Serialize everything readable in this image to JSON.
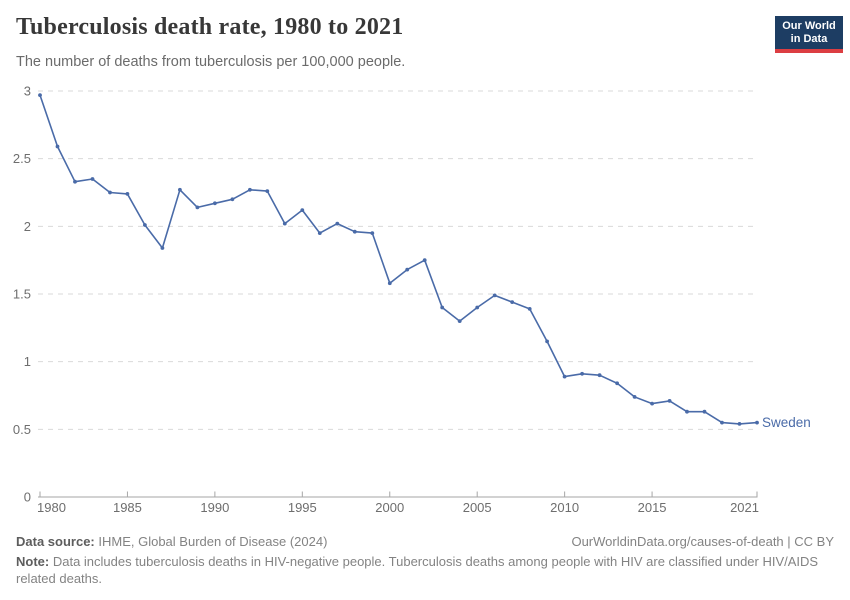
{
  "header": {
    "title": "Tuberculosis death rate, 1980 to 2021",
    "subtitle": "The number of deaths from tuberculosis per 100,000 people.",
    "logo_line1": "Our World",
    "logo_line2": "in Data"
  },
  "chart_data": {
    "type": "line",
    "title": "Tuberculosis death rate, 1980 to 2021",
    "xlabel": "",
    "ylabel": "Deaths from tuberculosis per 100,000 people",
    "xlim": [
      1980,
      2021
    ],
    "ylim": [
      0,
      3
    ],
    "yticks": [
      0,
      0.5,
      1,
      1.5,
      2,
      2.5,
      3
    ],
    "xticks": [
      1980,
      1985,
      1990,
      1995,
      2000,
      2005,
      2010,
      2015,
      2021
    ],
    "grid": "horizontal-dashed",
    "legend": "end-of-line-label",
    "colors": {
      "grid": "#d9d9d9",
      "axis": "#a6a6a6",
      "tick_text": "#6e6e6e"
    },
    "series": [
      {
        "name": "Sweden",
        "color": "#4a6ba8",
        "x": [
          1980,
          1981,
          1982,
          1983,
          1984,
          1985,
          1986,
          1987,
          1988,
          1989,
          1990,
          1991,
          1992,
          1993,
          1994,
          1995,
          1996,
          1997,
          1998,
          1999,
          2000,
          2001,
          2002,
          2003,
          2004,
          2005,
          2006,
          2007,
          2008,
          2009,
          2010,
          2011,
          2012,
          2013,
          2014,
          2015,
          2016,
          2017,
          2018,
          2019,
          2020,
          2021
        ],
        "values": [
          2.97,
          2.59,
          2.33,
          2.35,
          2.25,
          2.24,
          2.01,
          1.84,
          2.27,
          2.14,
          2.17,
          2.2,
          2.27,
          2.26,
          2.02,
          2.12,
          1.95,
          2.02,
          1.96,
          1.95,
          1.58,
          1.68,
          1.75,
          1.4,
          1.3,
          1.4,
          1.49,
          1.44,
          1.39,
          1.15,
          0.89,
          0.91,
          0.9,
          0.84,
          0.74,
          0.69,
          0.71,
          0.63,
          0.63,
          0.55,
          0.54,
          0.55
        ]
      }
    ]
  },
  "footer": {
    "source_label": "Data source:",
    "source_text": "IHME, Global Burden of Disease (2024)",
    "link": "OurWorldinData.org/causes-of-death | CC BY",
    "note_label": "Note:",
    "note_text": "Data includes tuberculosis deaths in HIV-negative people. Tuberculosis deaths among people with HIV are classified under HIV/AIDS related deaths."
  }
}
